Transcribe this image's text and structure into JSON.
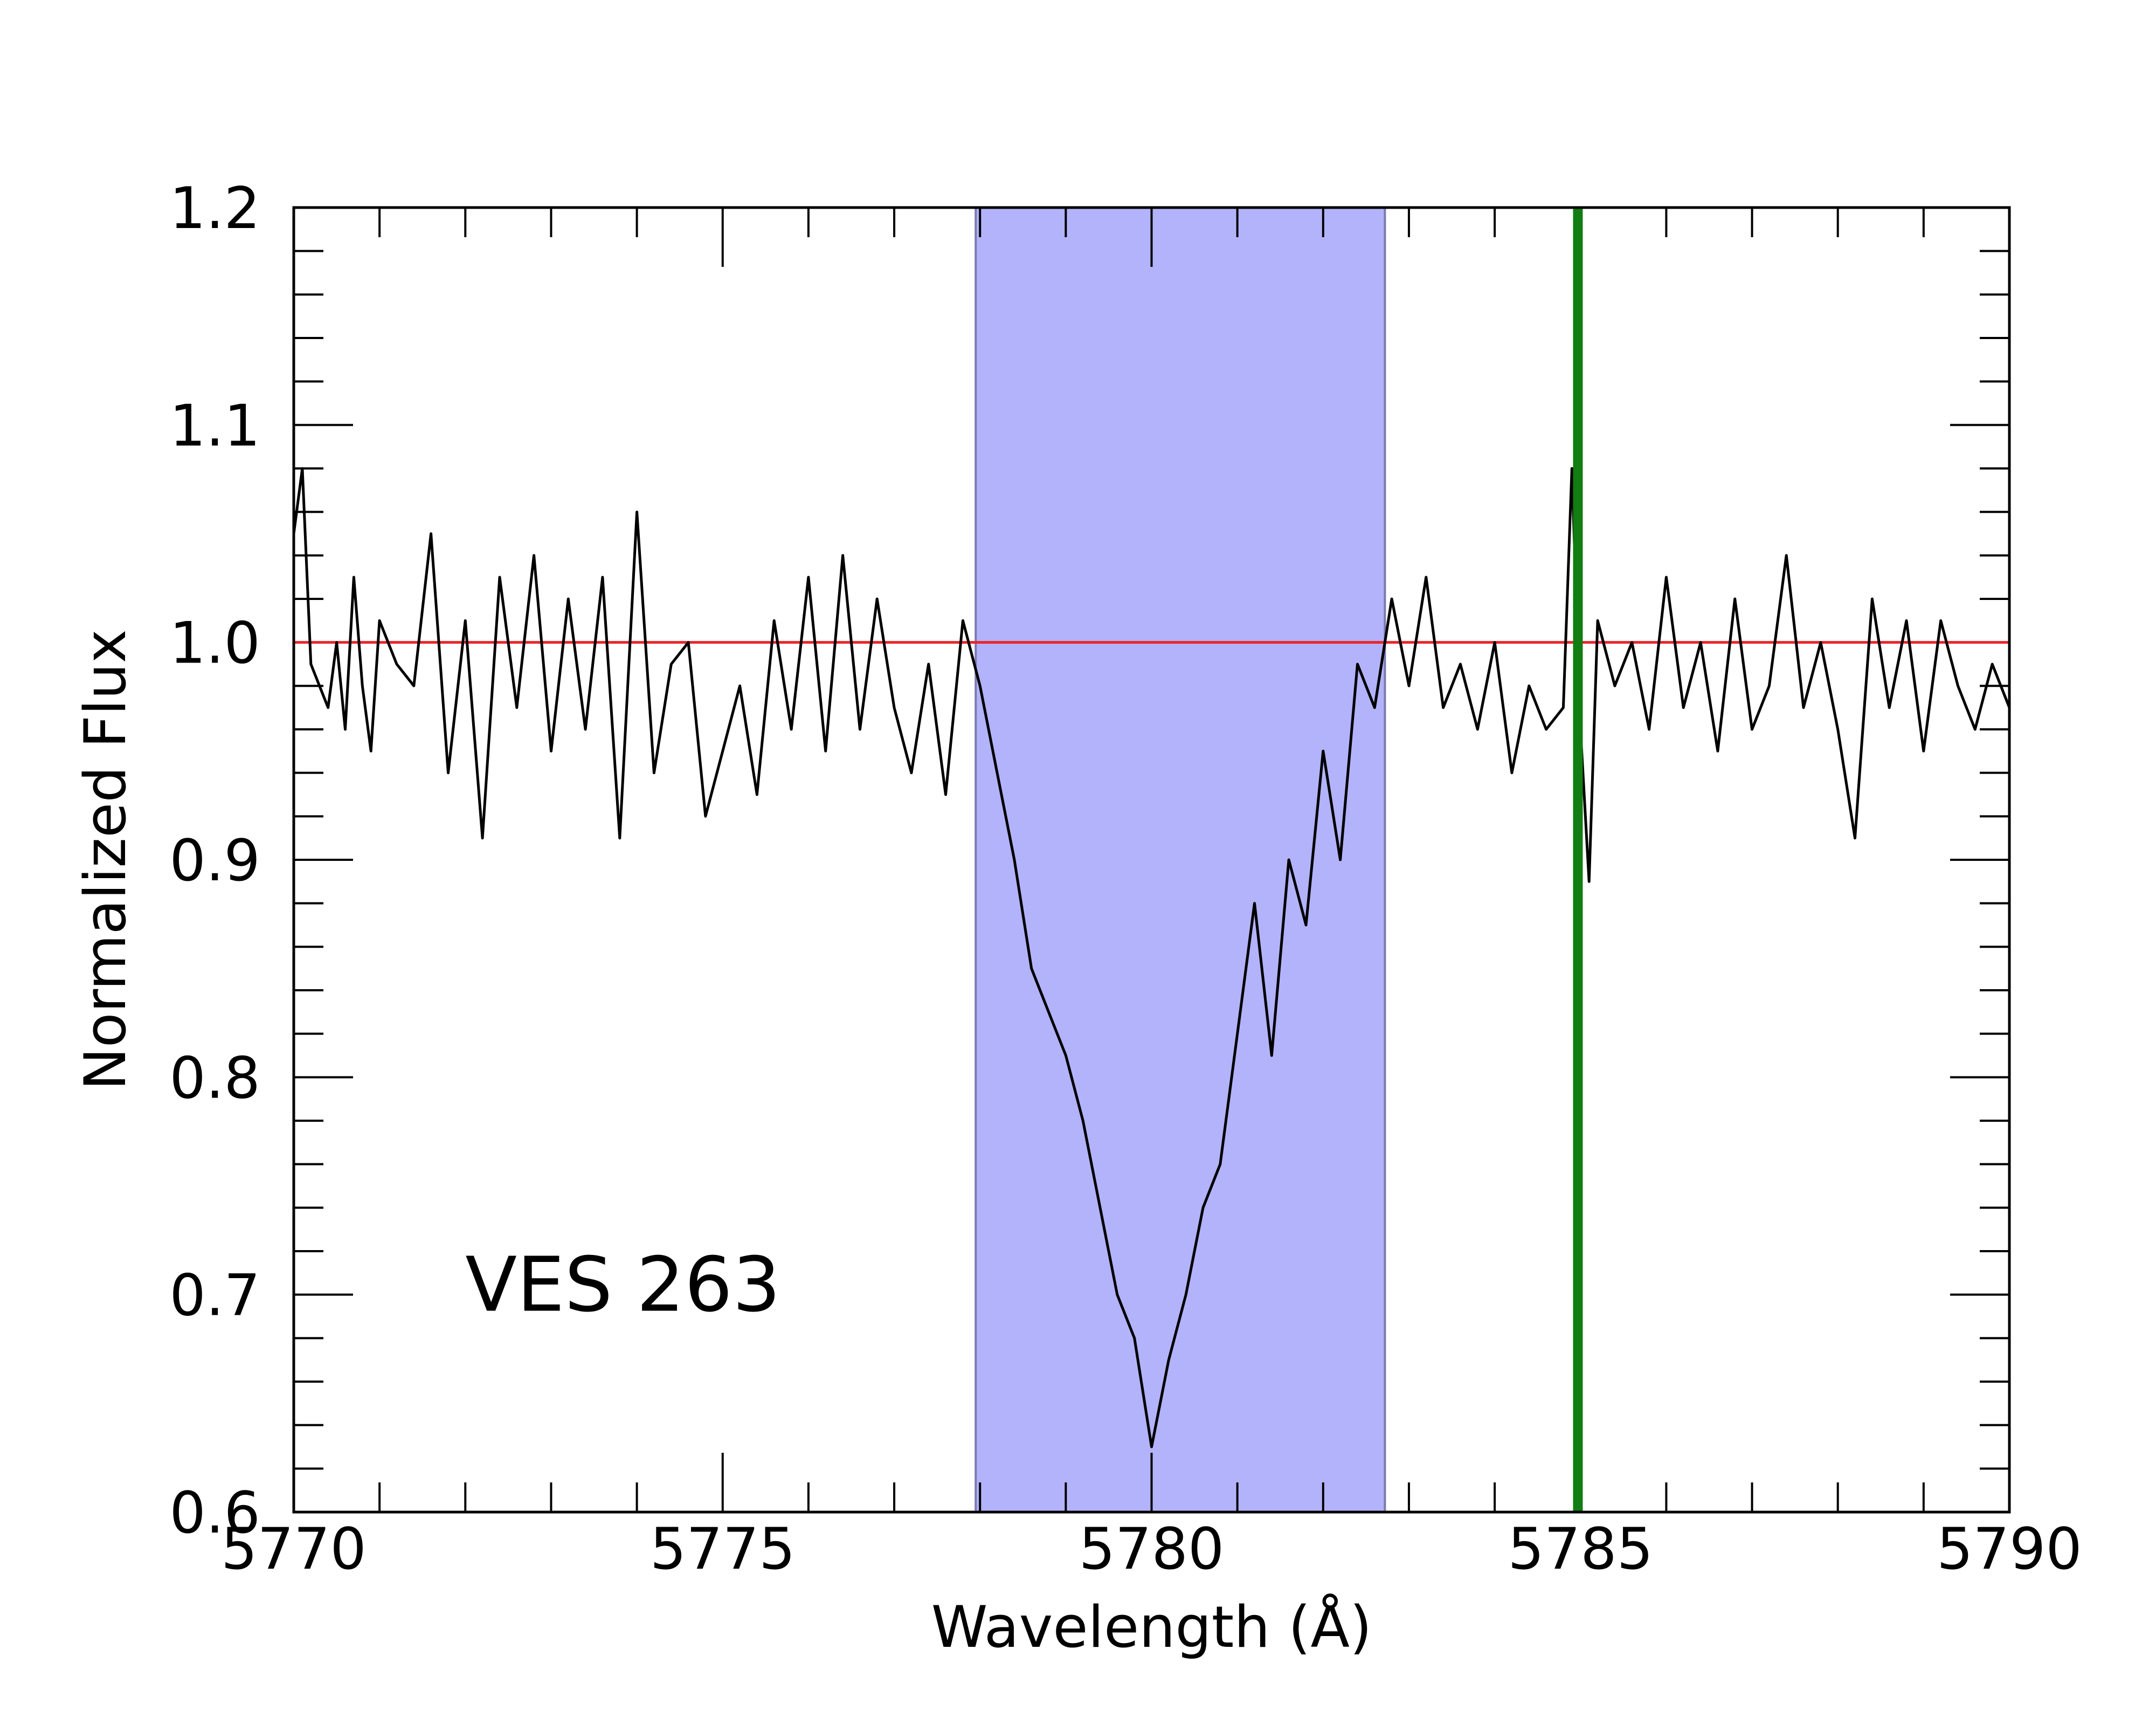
{
  "chart_data": {
    "type": "line",
    "title": "",
    "xlabel": "Wavelength (Å)",
    "ylabel": "Normalized Flux",
    "xlim": [
      5770,
      5790
    ],
    "ylim": [
      0.6,
      1.2
    ],
    "x_ticks": [
      5770,
      5775,
      5780,
      5785,
      5790
    ],
    "x_tick_labels": [
      "5770",
      "5775",
      "5780",
      "5785",
      "5790"
    ],
    "y_ticks": [
      0.6,
      0.7,
      0.8,
      0.9,
      1.0,
      1.1,
      1.2
    ],
    "y_tick_labels": [
      "0.6",
      "0.7",
      "0.8",
      "0.9",
      "1.0",
      "1.1",
      "1.2"
    ],
    "x_minor_step": 1,
    "y_minor_step": 0.02,
    "grid": false,
    "annotation": "VES 263",
    "continuum": {
      "y": 1.0,
      "color": "#e8262a"
    },
    "shaded_region": {
      "x_start": 5777.95,
      "x_end": 5782.72,
      "color": "#b3b3fb"
    },
    "marker_line": {
      "x": 5784.97,
      "color": "#127d12"
    },
    "series": [
      {
        "color": "#000000",
        "x": [
          5770.0,
          5770.1,
          5770.2,
          5770.3,
          5770.4,
          5770.5,
          5770.6,
          5770.7,
          5770.8,
          5770.9,
          5771.0,
          5771.2,
          5771.4,
          5771.6,
          5771.8,
          5772.0,
          5772.2,
          5772.4,
          5772.6,
          5772.8,
          5773.0,
          5773.2,
          5773.4,
          5773.6,
          5773.8,
          5774.0,
          5774.2,
          5774.4,
          5774.6,
          5774.8,
          5775.0,
          5775.2,
          5775.4,
          5775.6,
          5775.8,
          5776.0,
          5776.2,
          5776.4,
          5776.6,
          5776.8,
          5777.0,
          5777.2,
          5777.4,
          5777.6,
          5777.8,
          5778.0,
          5778.2,
          5778.4,
          5778.6,
          5778.8,
          5779.0,
          5779.2,
          5779.4,
          5779.6,
          5779.8,
          5780.0,
          5780.2,
          5780.4,
          5780.6,
          5780.8,
          5781.0,
          5781.2,
          5781.4,
          5781.6,
          5781.8,
          5782.0,
          5782.2,
          5782.4,
          5782.6,
          5782.8,
          5783.0,
          5783.2,
          5783.4,
          5783.6,
          5783.8,
          5784.0,
          5784.2,
          5784.4,
          5784.6,
          5784.8,
          5784.9,
          5785.0,
          5785.1,
          5785.2,
          5785.4,
          5785.6,
          5785.8,
          5786.0,
          5786.2,
          5786.4,
          5786.6,
          5786.8,
          5787.0,
          5787.2,
          5787.4,
          5787.6,
          5787.8,
          5788.0,
          5788.2,
          5788.4,
          5788.6,
          5788.8,
          5789.0,
          5789.2,
          5789.4,
          5789.6,
          5789.8,
          5790.0
        ],
        "y": [
          1.05,
          1.08,
          0.99,
          0.98,
          0.97,
          1.0,
          0.96,
          1.03,
          0.98,
          0.95,
          1.01,
          0.99,
          0.98,
          1.05,
          0.94,
          1.01,
          0.91,
          1.03,
          0.97,
          1.04,
          0.95,
          1.02,
          0.96,
          1.03,
          0.91,
          1.06,
          0.94,
          0.99,
          1.0,
          0.92,
          0.95,
          0.98,
          0.93,
          1.01,
          0.96,
          1.03,
          0.95,
          1.04,
          0.96,
          1.02,
          0.97,
          0.94,
          0.99,
          0.93,
          1.01,
          0.98,
          0.94,
          0.9,
          0.85,
          0.83,
          0.81,
          0.78,
          0.74,
          0.7,
          0.68,
          0.63,
          0.67,
          0.7,
          0.74,
          0.76,
          0.82,
          0.88,
          0.81,
          0.9,
          0.87,
          0.95,
          0.9,
          0.99,
          0.97,
          1.02,
          0.98,
          1.03,
          0.97,
          0.99,
          0.96,
          1.0,
          0.94,
          0.98,
          0.96,
          0.97,
          1.08,
          0.96,
          0.89,
          1.01,
          0.98,
          1.0,
          0.96,
          1.03,
          0.97,
          1.0,
          0.95,
          1.02,
          0.96,
          0.98,
          1.04,
          0.97,
          1.0,
          0.96,
          0.91,
          1.02,
          0.97,
          1.01,
          0.95,
          1.01,
          0.98,
          0.96,
          0.99,
          0.97
        ]
      }
    ]
  }
}
